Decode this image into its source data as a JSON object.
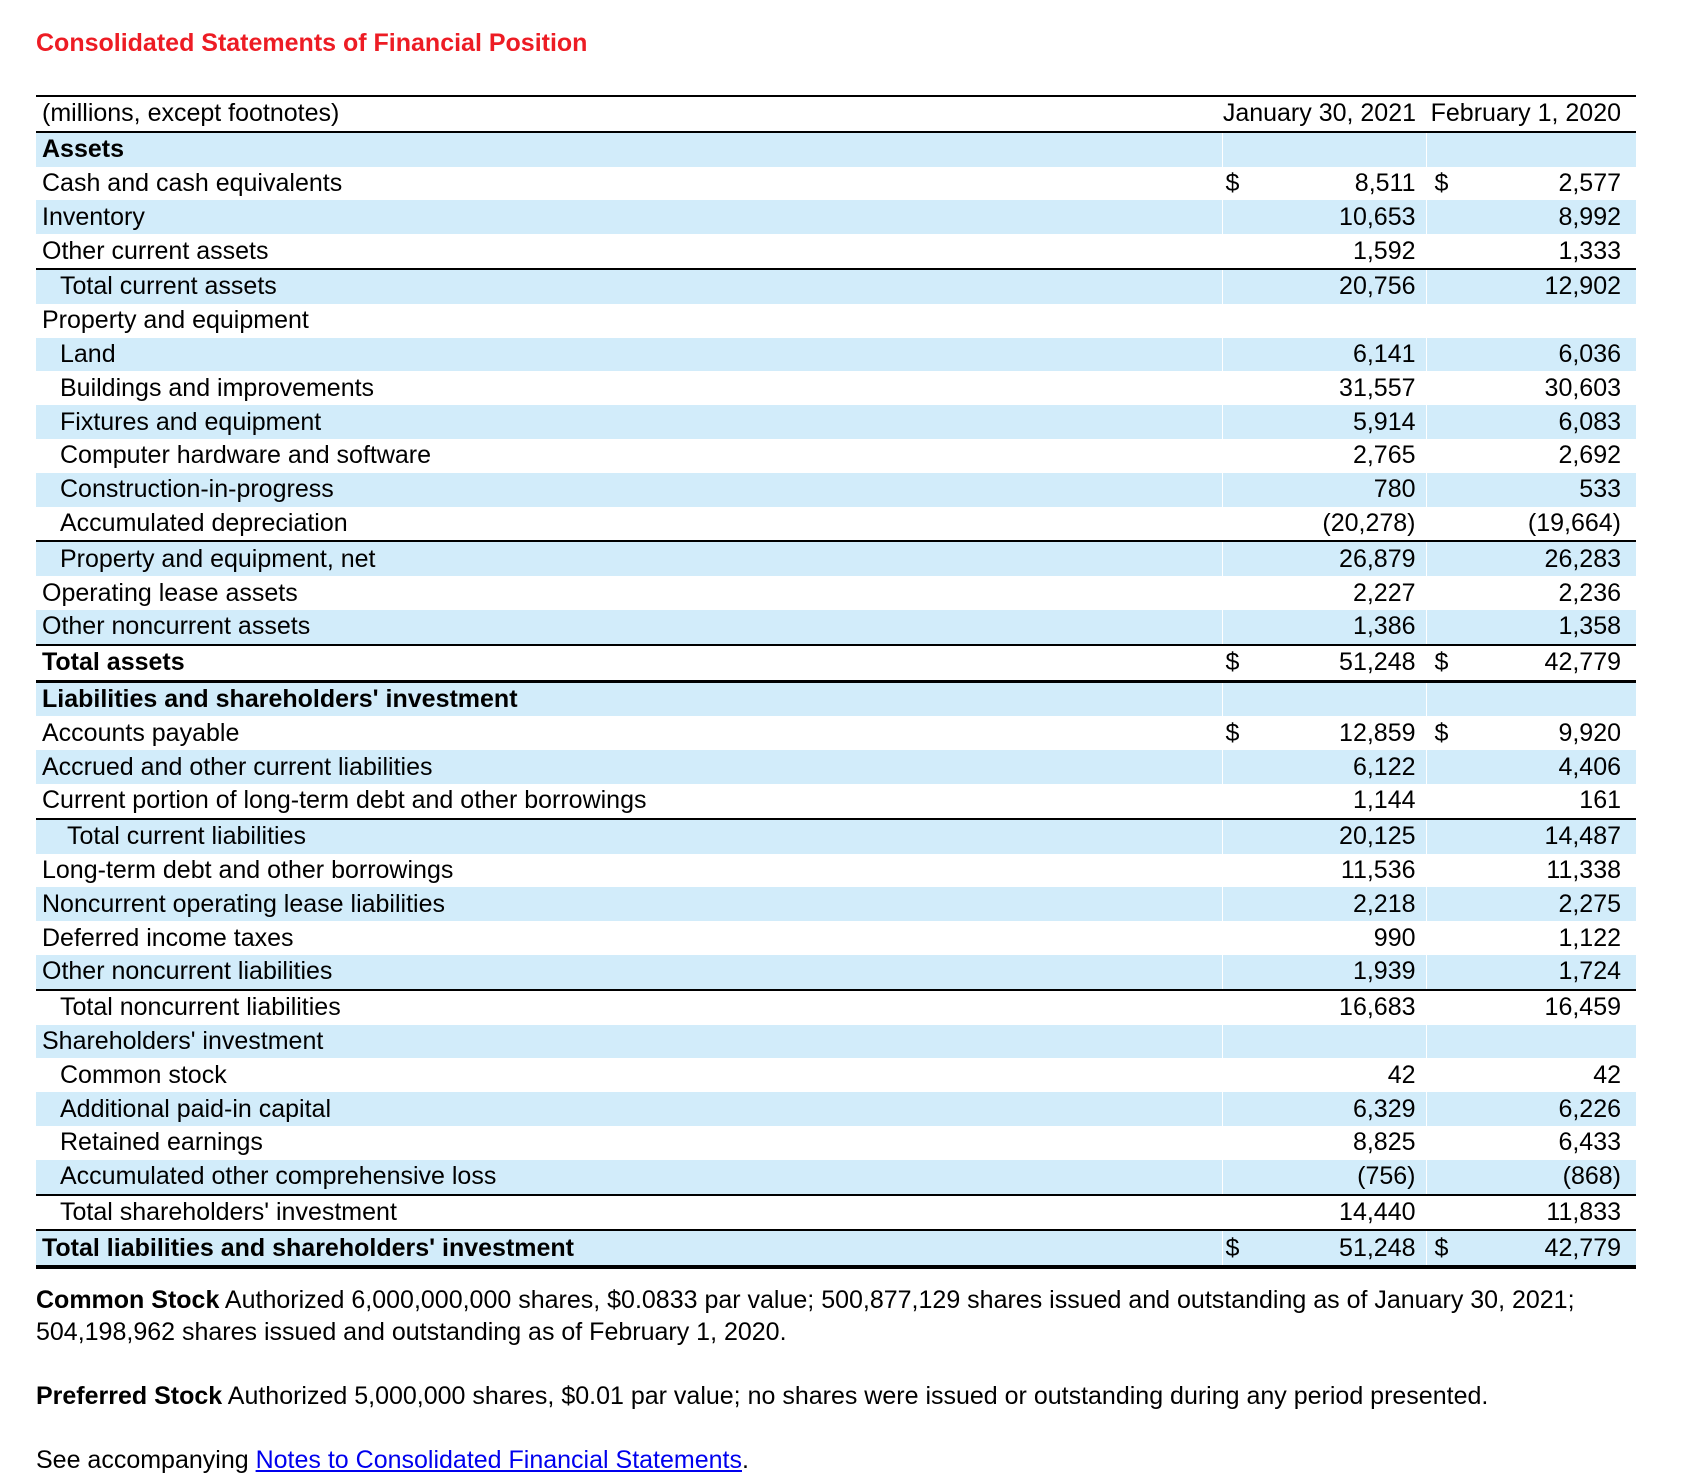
{
  "page": {
    "title": "Consolidated Statements of Financial Position"
  },
  "colors": {
    "title_red": "#ed1c24",
    "row_blue": "#d2ecfa",
    "link_blue": "#0000ee",
    "border_black": "#000000"
  },
  "table": {
    "unit_note": "(millions, except footnotes)",
    "columns": [
      "January 30, 2021",
      "February 1, 2020"
    ],
    "rows": [
      {
        "label": "Assets",
        "bold": true,
        "bg": "blue",
        "dollar": false,
        "v2021": "",
        "v2020": "",
        "indent": 0,
        "bb": "none"
      },
      {
        "label": "Cash and cash equivalents",
        "bold": false,
        "bg": "white",
        "dollar": true,
        "v2021": "8,511",
        "v2020": "2,577",
        "indent": 0,
        "bb": "none"
      },
      {
        "label": "Inventory",
        "bold": false,
        "bg": "blue",
        "dollar": false,
        "v2021": "10,653",
        "v2020": "8,992",
        "indent": 0,
        "bb": "none"
      },
      {
        "label": "Other current assets",
        "bold": false,
        "bg": "white",
        "dollar": false,
        "v2021": "1,592",
        "v2020": "1,333",
        "indent": 0,
        "bb": "thin"
      },
      {
        "label": "Total current assets",
        "bold": false,
        "bg": "blue",
        "dollar": false,
        "v2021": "20,756",
        "v2020": "12,902",
        "indent": 1,
        "bb": "none"
      },
      {
        "label": "Property and equipment",
        "bold": false,
        "bg": "white",
        "dollar": false,
        "v2021": "",
        "v2020": "",
        "indent": 0,
        "bb": "none"
      },
      {
        "label": "Land",
        "bold": false,
        "bg": "blue",
        "dollar": false,
        "v2021": "6,141",
        "v2020": "6,036",
        "indent": 1,
        "bb": "none"
      },
      {
        "label": "Buildings and improvements",
        "bold": false,
        "bg": "white",
        "dollar": false,
        "v2021": "31,557",
        "v2020": "30,603",
        "indent": 1,
        "bb": "none"
      },
      {
        "label": "Fixtures and equipment",
        "bold": false,
        "bg": "blue",
        "dollar": false,
        "v2021": "5,914",
        "v2020": "6,083",
        "indent": 1,
        "bb": "none"
      },
      {
        "label": "Computer hardware and software",
        "bold": false,
        "bg": "white",
        "dollar": false,
        "v2021": "2,765",
        "v2020": "2,692",
        "indent": 1,
        "bb": "none"
      },
      {
        "label": "Construction-in-progress",
        "bold": false,
        "bg": "blue",
        "dollar": false,
        "v2021": "780",
        "v2020": "533",
        "indent": 1,
        "bb": "none"
      },
      {
        "label": "Accumulated depreciation",
        "bold": false,
        "bg": "white",
        "dollar": false,
        "v2021": "(20,278)",
        "v2020": "(19,664)",
        "indent": 1,
        "bb": "thin"
      },
      {
        "label": "Property and equipment, net",
        "bold": false,
        "bg": "blue",
        "dollar": false,
        "v2021": "26,879",
        "v2020": "26,283",
        "indent": 1,
        "bb": "none"
      },
      {
        "label": "Operating lease assets",
        "bold": false,
        "bg": "white",
        "dollar": false,
        "v2021": "2,227",
        "v2020": "2,236",
        "indent": 0,
        "bb": "none"
      },
      {
        "label": "Other noncurrent assets",
        "bold": false,
        "bg": "blue",
        "dollar": false,
        "v2021": "1,386",
        "v2020": "1,358",
        "indent": 0,
        "bb": "thin"
      },
      {
        "label": "Total assets",
        "bold": true,
        "bg": "white",
        "dollar": true,
        "v2021": "51,248",
        "v2020": "42,779",
        "indent": 0,
        "bb": "thick"
      },
      {
        "label": "Liabilities and shareholders' investment",
        "bold": true,
        "bg": "blue",
        "dollar": false,
        "v2021": "",
        "v2020": "",
        "indent": 0,
        "bb": "none"
      },
      {
        "label": "Accounts payable",
        "bold": false,
        "bg": "white",
        "dollar": true,
        "v2021": "12,859",
        "v2020": "9,920",
        "indent": 0,
        "bb": "none"
      },
      {
        "label": "Accrued and other current liabilities",
        "bold": false,
        "bg": "blue",
        "dollar": false,
        "v2021": "6,122",
        "v2020": "4,406",
        "indent": 0,
        "bb": "none"
      },
      {
        "label": "Current portion of long-term debt and other borrowings",
        "bold": false,
        "bg": "white",
        "dollar": false,
        "v2021": "1,144",
        "v2020": "161",
        "indent": 0,
        "bb": "thin"
      },
      {
        "label": "Total current liabilities",
        "bold": false,
        "bg": "blue",
        "dollar": false,
        "v2021": "20,125",
        "v2020": "14,487",
        "indent": 2,
        "bb": "none"
      },
      {
        "label": "Long-term debt and other borrowings",
        "bold": false,
        "bg": "white",
        "dollar": false,
        "v2021": "11,536",
        "v2020": "11,338",
        "indent": 0,
        "bb": "none"
      },
      {
        "label": "Noncurrent operating lease liabilities",
        "bold": false,
        "bg": "blue",
        "dollar": false,
        "v2021": "2,218",
        "v2020": "2,275",
        "indent": 0,
        "bb": "none"
      },
      {
        "label": "Deferred income taxes",
        "bold": false,
        "bg": "white",
        "dollar": false,
        "v2021": "990",
        "v2020": "1,122",
        "indent": 0,
        "bb": "none"
      },
      {
        "label": "Other noncurrent liabilities",
        "bold": false,
        "bg": "blue",
        "dollar": false,
        "v2021": "1,939",
        "v2020": "1,724",
        "indent": 0,
        "bb": "thin"
      },
      {
        "label": "Total noncurrent liabilities",
        "bold": false,
        "bg": "white",
        "dollar": false,
        "v2021": "16,683",
        "v2020": "16,459",
        "indent": 1,
        "bb": "none"
      },
      {
        "label": "Shareholders' investment",
        "bold": false,
        "bg": "blue",
        "dollar": false,
        "v2021": "",
        "v2020": "",
        "indent": 0,
        "bb": "none"
      },
      {
        "label": "Common stock",
        "bold": false,
        "bg": "white",
        "dollar": false,
        "v2021": "42",
        "v2020": "42",
        "indent": 1,
        "bb": "none"
      },
      {
        "label": "Additional paid-in capital",
        "bold": false,
        "bg": "blue",
        "dollar": false,
        "v2021": "6,329",
        "v2020": "6,226",
        "indent": 1,
        "bb": "none"
      },
      {
        "label": "Retained earnings",
        "bold": false,
        "bg": "white",
        "dollar": false,
        "v2021": "8,825",
        "v2020": "6,433",
        "indent": 1,
        "bb": "none"
      },
      {
        "label": "Accumulated other comprehensive loss",
        "bold": false,
        "bg": "blue",
        "dollar": false,
        "v2021": "(756)",
        "v2020": "(868)",
        "indent": 1,
        "bb": "thin"
      },
      {
        "label": "Total shareholders' investment",
        "bold": false,
        "bg": "white",
        "dollar": false,
        "v2021": "14,440",
        "v2020": "11,833",
        "indent": 1,
        "bb": "med"
      },
      {
        "label": "Total liabilities and shareholders' investment",
        "bold": true,
        "bg": "blue",
        "dollar": true,
        "v2021": "51,248",
        "v2020": "42,779",
        "indent": 0,
        "bb": "final"
      }
    ],
    "dollar_sign": "$"
  },
  "footnotes": {
    "common_stock": {
      "lead": "Common Stock",
      "line1": " Authorized 6,000,000,000 shares, $0.0833 par value; 500,877,129 shares issued and outstanding as of January 30, 2021;",
      "line2": "504,198,962 shares issued and outstanding as of February 1, 2020."
    },
    "preferred_stock": {
      "lead": "Preferred Stock",
      "text": " Authorized 5,000,000 shares, $0.01 par value; no shares were issued or outstanding during any period presented."
    },
    "see_accompanying": {
      "prefix": "See accompanying ",
      "link_text": "Notes to Consolidated Financial Statements",
      "suffix": "."
    }
  }
}
